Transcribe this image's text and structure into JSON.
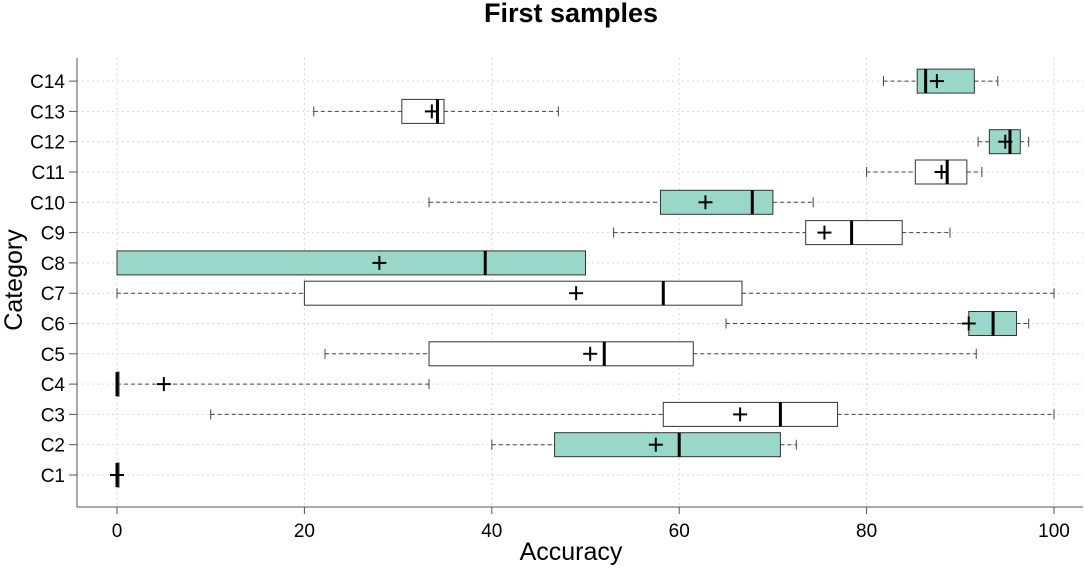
{
  "chart_data": {
    "type": "boxplot",
    "orientation": "horizontal",
    "title": "First samples",
    "xlabel": "Accuracy",
    "ylabel": "Category",
    "xlim": [
      -4,
      103
    ],
    "xticks": [
      0,
      20,
      40,
      60,
      80,
      100
    ],
    "grid": true,
    "colors": {
      "shaded": "#99d8c9",
      "plain": "#ffffff"
    },
    "categories": [
      "C1",
      "C2",
      "C3",
      "C4",
      "C5",
      "C6",
      "C7",
      "C8",
      "C9",
      "C10",
      "C11",
      "C12",
      "C13",
      "C14"
    ],
    "boxes": [
      {
        "name": "C1",
        "min": 0,
        "q1": 0,
        "median": 0,
        "q3": 0,
        "max": 0,
        "mean": 0,
        "shaded": false
      },
      {
        "name": "C2",
        "min": 40,
        "q1": 46.7,
        "median": 60,
        "q3": 70.8,
        "max": 72.5,
        "mean": 57.5,
        "shaded": true
      },
      {
        "name": "C3",
        "min": 10,
        "q1": 58.3,
        "median": 70.8,
        "q3": 76.9,
        "max": 100,
        "mean": 66.5,
        "shaded": false
      },
      {
        "name": "C4",
        "min": 0,
        "q1": 0,
        "median": 0,
        "q3": 0,
        "max": 33.3,
        "mean": 5,
        "shaded": false
      },
      {
        "name": "C5",
        "min": 22.2,
        "q1": 33.3,
        "median": 52,
        "q3": 61.5,
        "max": 91.7,
        "mean": 50.5,
        "shaded": false
      },
      {
        "name": "C6",
        "min": 65,
        "q1": 90.9,
        "median": 93.5,
        "q3": 96,
        "max": 97.3,
        "mean": 90.9,
        "shaded": true
      },
      {
        "name": "C7",
        "min": 0,
        "q1": 20,
        "median": 58.3,
        "q3": 66.7,
        "max": 100,
        "mean": 49,
        "shaded": false
      },
      {
        "name": "C8",
        "min": 0,
        "q1": 0,
        "median": 39.3,
        "q3": 50,
        "max": 50,
        "mean": 28,
        "shaded": true
      },
      {
        "name": "C9",
        "min": 53,
        "q1": 73.5,
        "median": 78.4,
        "q3": 83.8,
        "max": 88.9,
        "mean": 75.5,
        "shaded": false
      },
      {
        "name": "C10",
        "min": 33.3,
        "q1": 58,
        "median": 67.8,
        "q3": 70,
        "max": 74.3,
        "mean": 62.8,
        "shaded": true
      },
      {
        "name": "C11",
        "min": 80,
        "q1": 85.2,
        "median": 88.6,
        "q3": 90.7,
        "max": 92.3,
        "mean": 88,
        "shaded": false
      },
      {
        "name": "C12",
        "min": 91.9,
        "q1": 93.1,
        "median": 95.3,
        "q3": 96.4,
        "max": 97.3,
        "mean": 94.8,
        "shaded": true
      },
      {
        "name": "C13",
        "min": 21,
        "q1": 30.4,
        "median": 34.2,
        "q3": 34.9,
        "max": 47.1,
        "mean": 33.6,
        "shaded": false
      },
      {
        "name": "C14",
        "min": 81.8,
        "q1": 85.4,
        "median": 86.3,
        "q3": 91.5,
        "max": 94,
        "mean": 87.5,
        "shaded": true
      }
    ]
  }
}
